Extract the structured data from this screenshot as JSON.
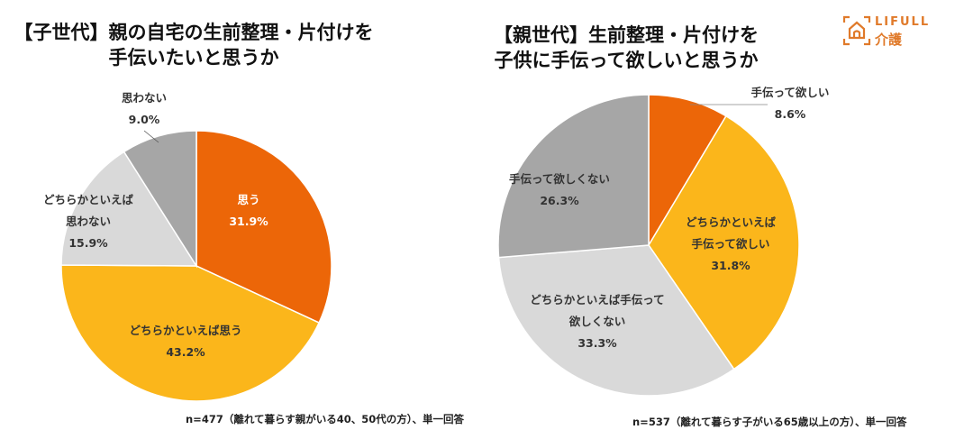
{
  "chart_data": [
    {
      "type": "pie",
      "title_lines": [
        "【子世代】親の自宅の生前整理・片付けを",
        "手伝いたいと思うか"
      ],
      "note": "n=477（離れて暮らす親がいる40、50代の方）、単一回答",
      "slices": [
        {
          "name_lines": [
            "思う"
          ],
          "value": 31.9,
          "value_label": "31.9%",
          "color": "#EC6608"
        },
        {
          "name_lines": [
            "どちらかといえば思う"
          ],
          "value": 43.2,
          "value_label": "43.2%",
          "color": "#FBB61B"
        },
        {
          "name_lines": [
            "どちらかといえば",
            "思わない"
          ],
          "value": 15.9,
          "value_label": "15.9%",
          "color": "#D9D9D9"
        },
        {
          "name_lines": [
            "思わない"
          ],
          "value": 9.0,
          "value_label": "9.0%",
          "color": "#A6A6A6"
        }
      ]
    },
    {
      "type": "pie",
      "title_lines": [
        "【親世代】生前整理・片付けを",
        "子供に手伝って欲しいと思うか"
      ],
      "note": "n=537（離れて暮らす子がいる65歳以上の方）、単一回答",
      "slices": [
        {
          "name_lines": [
            "手伝って欲しい"
          ],
          "value": 8.6,
          "value_label": "8.6%",
          "color": "#EC6608"
        },
        {
          "name_lines": [
            "どちらかといえば",
            "手伝って欲しい"
          ],
          "value": 31.8,
          "value_label": "31.8%",
          "color": "#FBB61B"
        },
        {
          "name_lines": [
            "どちらかといえば手伝って",
            "欲しくない"
          ],
          "value": 33.3,
          "value_label": "33.3%",
          "color": "#D9D9D9"
        },
        {
          "name_lines": [
            "手伝って欲しくない"
          ],
          "value": 26.3,
          "value_label": "26.3%",
          "color": "#A6A6A6"
        }
      ]
    }
  ],
  "logo": {
    "word": "LIFULL",
    "sub": "介護",
    "color": "#E07A2A"
  }
}
